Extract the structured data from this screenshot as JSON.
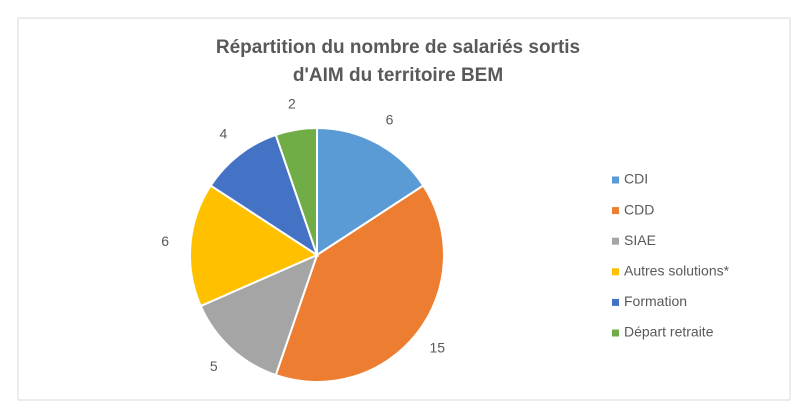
{
  "chart_data": {
    "type": "pie",
    "title": [
      "Répartition du nombre de salariés sortis",
      "d'AIM du territoire BEM"
    ],
    "categories": [
      "CDI",
      "CDD",
      "SIAE",
      "Autres solutions*",
      "Formation",
      "Départ retraite"
    ],
    "values": [
      6,
      15,
      5,
      6,
      4,
      2
    ],
    "colors": [
      "#5b9bd5",
      "#ed7d31",
      "#a5a5a5",
      "#ffc000",
      "#4472c4",
      "#70ad47"
    ],
    "legend": "right"
  }
}
